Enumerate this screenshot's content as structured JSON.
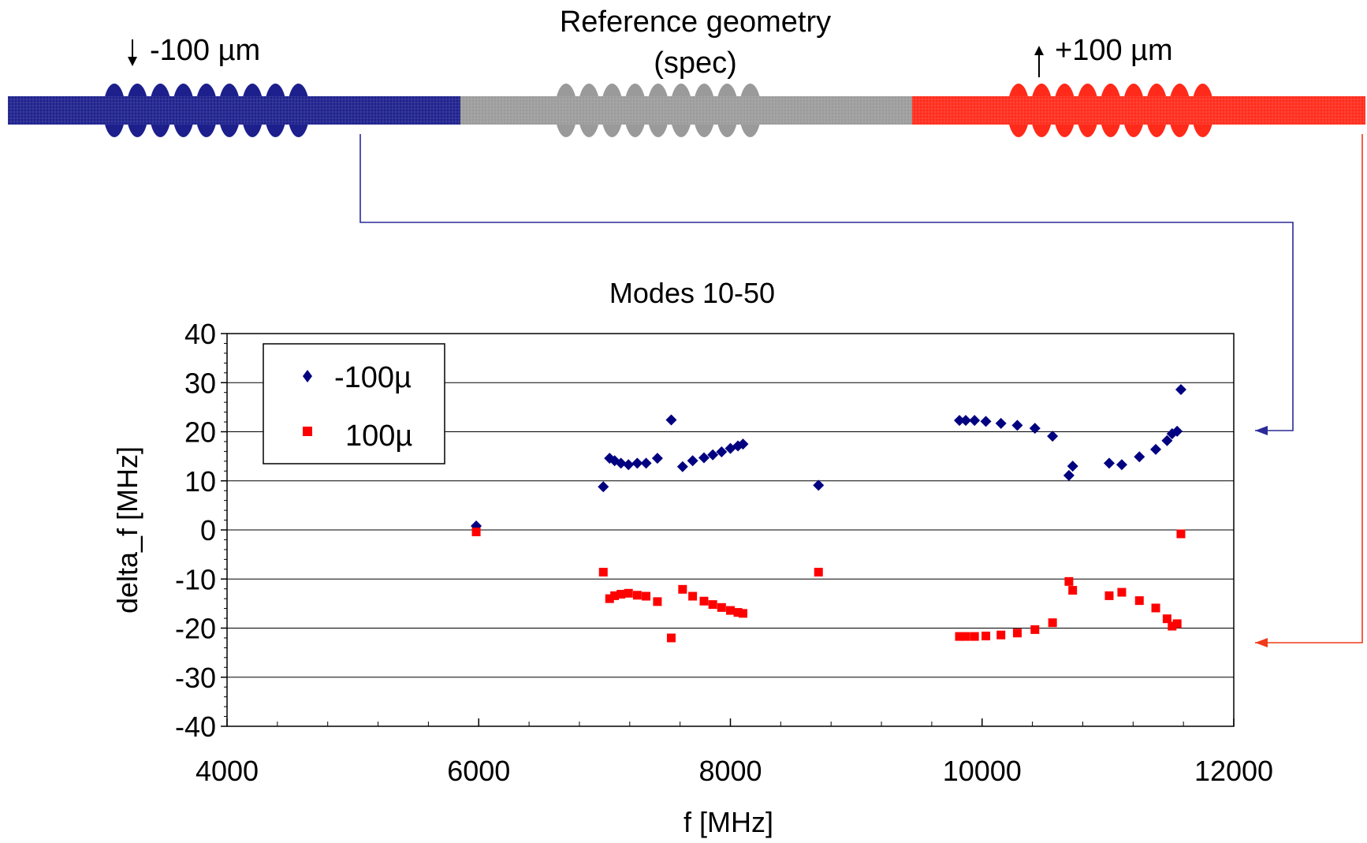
{
  "labels": {
    "minus_label": "-100 µm",
    "reference_line1": "Reference geometry",
    "reference_line2": "(spec)",
    "plus_label": "+100 µm"
  },
  "colors": {
    "minus": "#1c1f8c",
    "reference": "#9a9a9a",
    "plus": "#ff2a1a",
    "connector_blue": "#2a2a99",
    "connector_red": "#f03a1a",
    "marker_blue": "#000080",
    "marker_red": "#ff0000"
  },
  "chart_data": {
    "type": "scatter",
    "title": "Modes 10-50",
    "xlabel": "f [MHz]",
    "ylabel": "delta_f [MHz]",
    "xlim": [
      4000,
      12000
    ],
    "ylim": [
      -40,
      40
    ],
    "xticks": [
      4000,
      6000,
      8000,
      10000,
      12000
    ],
    "yticks": [
      40,
      30,
      20,
      10,
      0,
      -10,
      -20,
      -30,
      -40
    ],
    "grid": "horizontal",
    "legend_position": "top-left",
    "series": [
      {
        "name": "-100µ",
        "marker": "diamond",
        "points": [
          [
            5980,
            0.8
          ],
          [
            6990,
            8.8
          ],
          [
            7040,
            14.6
          ],
          [
            7080,
            14.1
          ],
          [
            7130,
            13.6
          ],
          [
            7190,
            13.3
          ],
          [
            7260,
            13.6
          ],
          [
            7330,
            13.6
          ],
          [
            7420,
            14.6
          ],
          [
            7530,
            22.4
          ],
          [
            7620,
            12.9
          ],
          [
            7700,
            14.1
          ],
          [
            7790,
            14.7
          ],
          [
            7860,
            15.3
          ],
          [
            7930,
            15.9
          ],
          [
            8000,
            16.6
          ],
          [
            8060,
            17.1
          ],
          [
            8100,
            17.5
          ],
          [
            8700,
            9.1
          ],
          [
            9820,
            22.3
          ],
          [
            9870,
            22.3
          ],
          [
            9940,
            22.3
          ],
          [
            10030,
            22.1
          ],
          [
            10150,
            21.7
          ],
          [
            10280,
            21.3
          ],
          [
            10420,
            20.7
          ],
          [
            10560,
            19.1
          ],
          [
            10690,
            11.1
          ],
          [
            10720,
            13.0
          ],
          [
            11010,
            13.6
          ],
          [
            11110,
            13.3
          ],
          [
            11250,
            14.9
          ],
          [
            11380,
            16.4
          ],
          [
            11470,
            18.2
          ],
          [
            11510,
            19.6
          ],
          [
            11550,
            20.1
          ],
          [
            11580,
            28.6
          ]
        ]
      },
      {
        "name": "100µ",
        "marker": "square",
        "points": [
          [
            5980,
            -0.4
          ],
          [
            6990,
            -8.6
          ],
          [
            7040,
            -14.0
          ],
          [
            7080,
            -13.4
          ],
          [
            7130,
            -13.1
          ],
          [
            7190,
            -12.9
          ],
          [
            7260,
            -13.3
          ],
          [
            7330,
            -13.5
          ],
          [
            7420,
            -14.6
          ],
          [
            7530,
            -22.0
          ],
          [
            7620,
            -12.1
          ],
          [
            7700,
            -13.5
          ],
          [
            7790,
            -14.5
          ],
          [
            7860,
            -15.2
          ],
          [
            7930,
            -15.8
          ],
          [
            8000,
            -16.4
          ],
          [
            8060,
            -16.8
          ],
          [
            8100,
            -17.0
          ],
          [
            8700,
            -8.6
          ],
          [
            9820,
            -21.7
          ],
          [
            9870,
            -21.7
          ],
          [
            9940,
            -21.7
          ],
          [
            10030,
            -21.6
          ],
          [
            10150,
            -21.4
          ],
          [
            10280,
            -21.0
          ],
          [
            10420,
            -20.3
          ],
          [
            10560,
            -18.9
          ],
          [
            10690,
            -10.5
          ],
          [
            10720,
            -12.3
          ],
          [
            11010,
            -13.4
          ],
          [
            11110,
            -12.7
          ],
          [
            11250,
            -14.4
          ],
          [
            11380,
            -15.9
          ],
          [
            11470,
            -18.1
          ],
          [
            11510,
            -19.6
          ],
          [
            11550,
            -19.1
          ],
          [
            11580,
            -0.8
          ]
        ]
      }
    ]
  }
}
